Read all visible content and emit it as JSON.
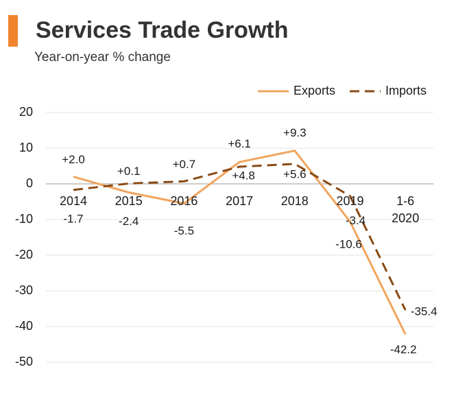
{
  "chart_data": {
    "type": "line",
    "title": "Services Trade Growth",
    "subtitle": "Year-on-year % change",
    "categories": [
      "2014",
      "2015",
      "2016",
      "2017",
      "2018",
      "2019",
      "1-6 2020"
    ],
    "series": [
      {
        "name": "Exports",
        "color": "#f0a55e",
        "dash": false,
        "values": [
          2.0,
          -2.4,
          -5.5,
          6.1,
          9.3,
          -10.6,
          -42.2
        ],
        "value_labels": [
          "+2.0",
          "-2.4",
          "-5.5",
          "+6.1",
          "+9.3",
          "-10.6",
          "-42.2"
        ]
      },
      {
        "name": "Imports",
        "color": "#8a4a14",
        "dash": true,
        "values": [
          -1.7,
          0.1,
          0.7,
          4.8,
          5.6,
          -3.4,
          -35.4
        ],
        "value_labels": [
          "-1.7",
          "+0.1",
          "+0.7",
          "+4.8",
          "+5.6",
          "-3.4",
          "-35.4"
        ]
      }
    ],
    "ylim": [
      -50,
      20
    ],
    "yticks": [
      -50,
      -40,
      -30,
      -20,
      -10,
      0,
      10,
      20
    ],
    "grid": true,
    "legend": "top-right"
  }
}
